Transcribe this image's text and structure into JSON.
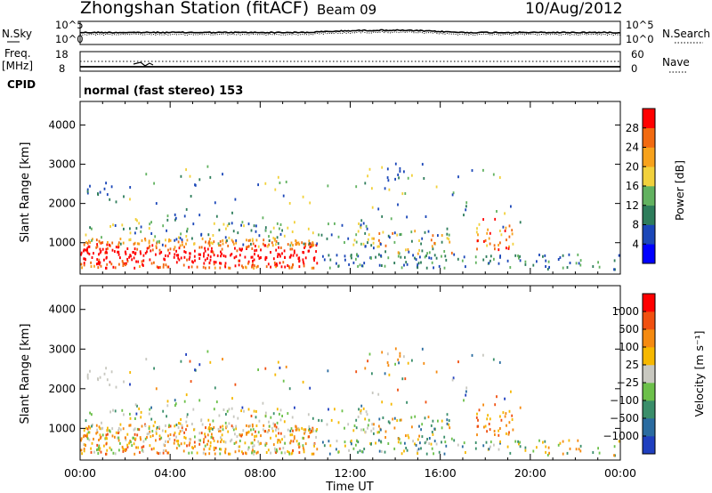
{
  "header": {
    "station": "Zhongshan Station (fitACF)",
    "beam": "Beam 09",
    "date": "10/Aug/2012"
  },
  "aux_panels": {
    "nsky_label": "N.Sky",
    "nsearch_label": "N.Search",
    "noise_ticks": [
      "10^5",
      "10^0"
    ],
    "freq_label_1": "Freq.",
    "freq_label_2": "[MHz]",
    "freq_ticks": [
      "18",
      "8"
    ],
    "nave_label": "Nave",
    "nave_ticks": [
      "60",
      "0"
    ],
    "cpid_label": "CPID",
    "cpid_text": "normal (fast stereo) 153"
  },
  "chart_data": [
    {
      "type": "heatmap",
      "title": "",
      "xlabel": "Time UT",
      "ylabel": "Slant Range [km]",
      "x_ticks": [
        "00:00",
        "04:00",
        "08:00",
        "12:00",
        "16:00",
        "20:00",
        "00:00"
      ],
      "xlim": [
        0,
        24
      ],
      "ylim": [
        200,
        4600
      ],
      "y_ticks": [
        1000,
        2000,
        3000,
        4000
      ],
      "colorbar": {
        "label": "Power [dB]",
        "ticks": [
          4,
          8,
          12,
          16,
          20,
          24,
          28
        ],
        "range": [
          0,
          32
        ],
        "colors": [
          "#0000ff",
          "#1b47b8",
          "#2e7d5b",
          "#62b260",
          "#f2d13c",
          "#f7a21c",
          "#f26a10",
          "#ff0000"
        ]
      }
    },
    {
      "type": "heatmap",
      "title": "",
      "xlabel": "Time UT",
      "ylabel": "Slant Range [km]",
      "x_ticks": [
        "00:00",
        "04:00",
        "08:00",
        "12:00",
        "16:00",
        "20:00",
        "00:00"
      ],
      "xlim": [
        0,
        24
      ],
      "ylim": [
        200,
        4600
      ],
      "y_ticks": [
        1000,
        2000,
        3000,
        4000
      ],
      "colorbar": {
        "label": "Velocity [m s⁻¹]",
        "ticks": [
          "1000",
          "500",
          "100",
          "25",
          "−25",
          "−100",
          "−500",
          "−1000"
        ],
        "colors": [
          "#1f3fbf",
          "#2a6ba0",
          "#3a8e6a",
          "#6cc04a",
          "#c8c8c0",
          "#f6b800",
          "#f58a10",
          "#f05010",
          "#ff0000"
        ]
      }
    }
  ]
}
